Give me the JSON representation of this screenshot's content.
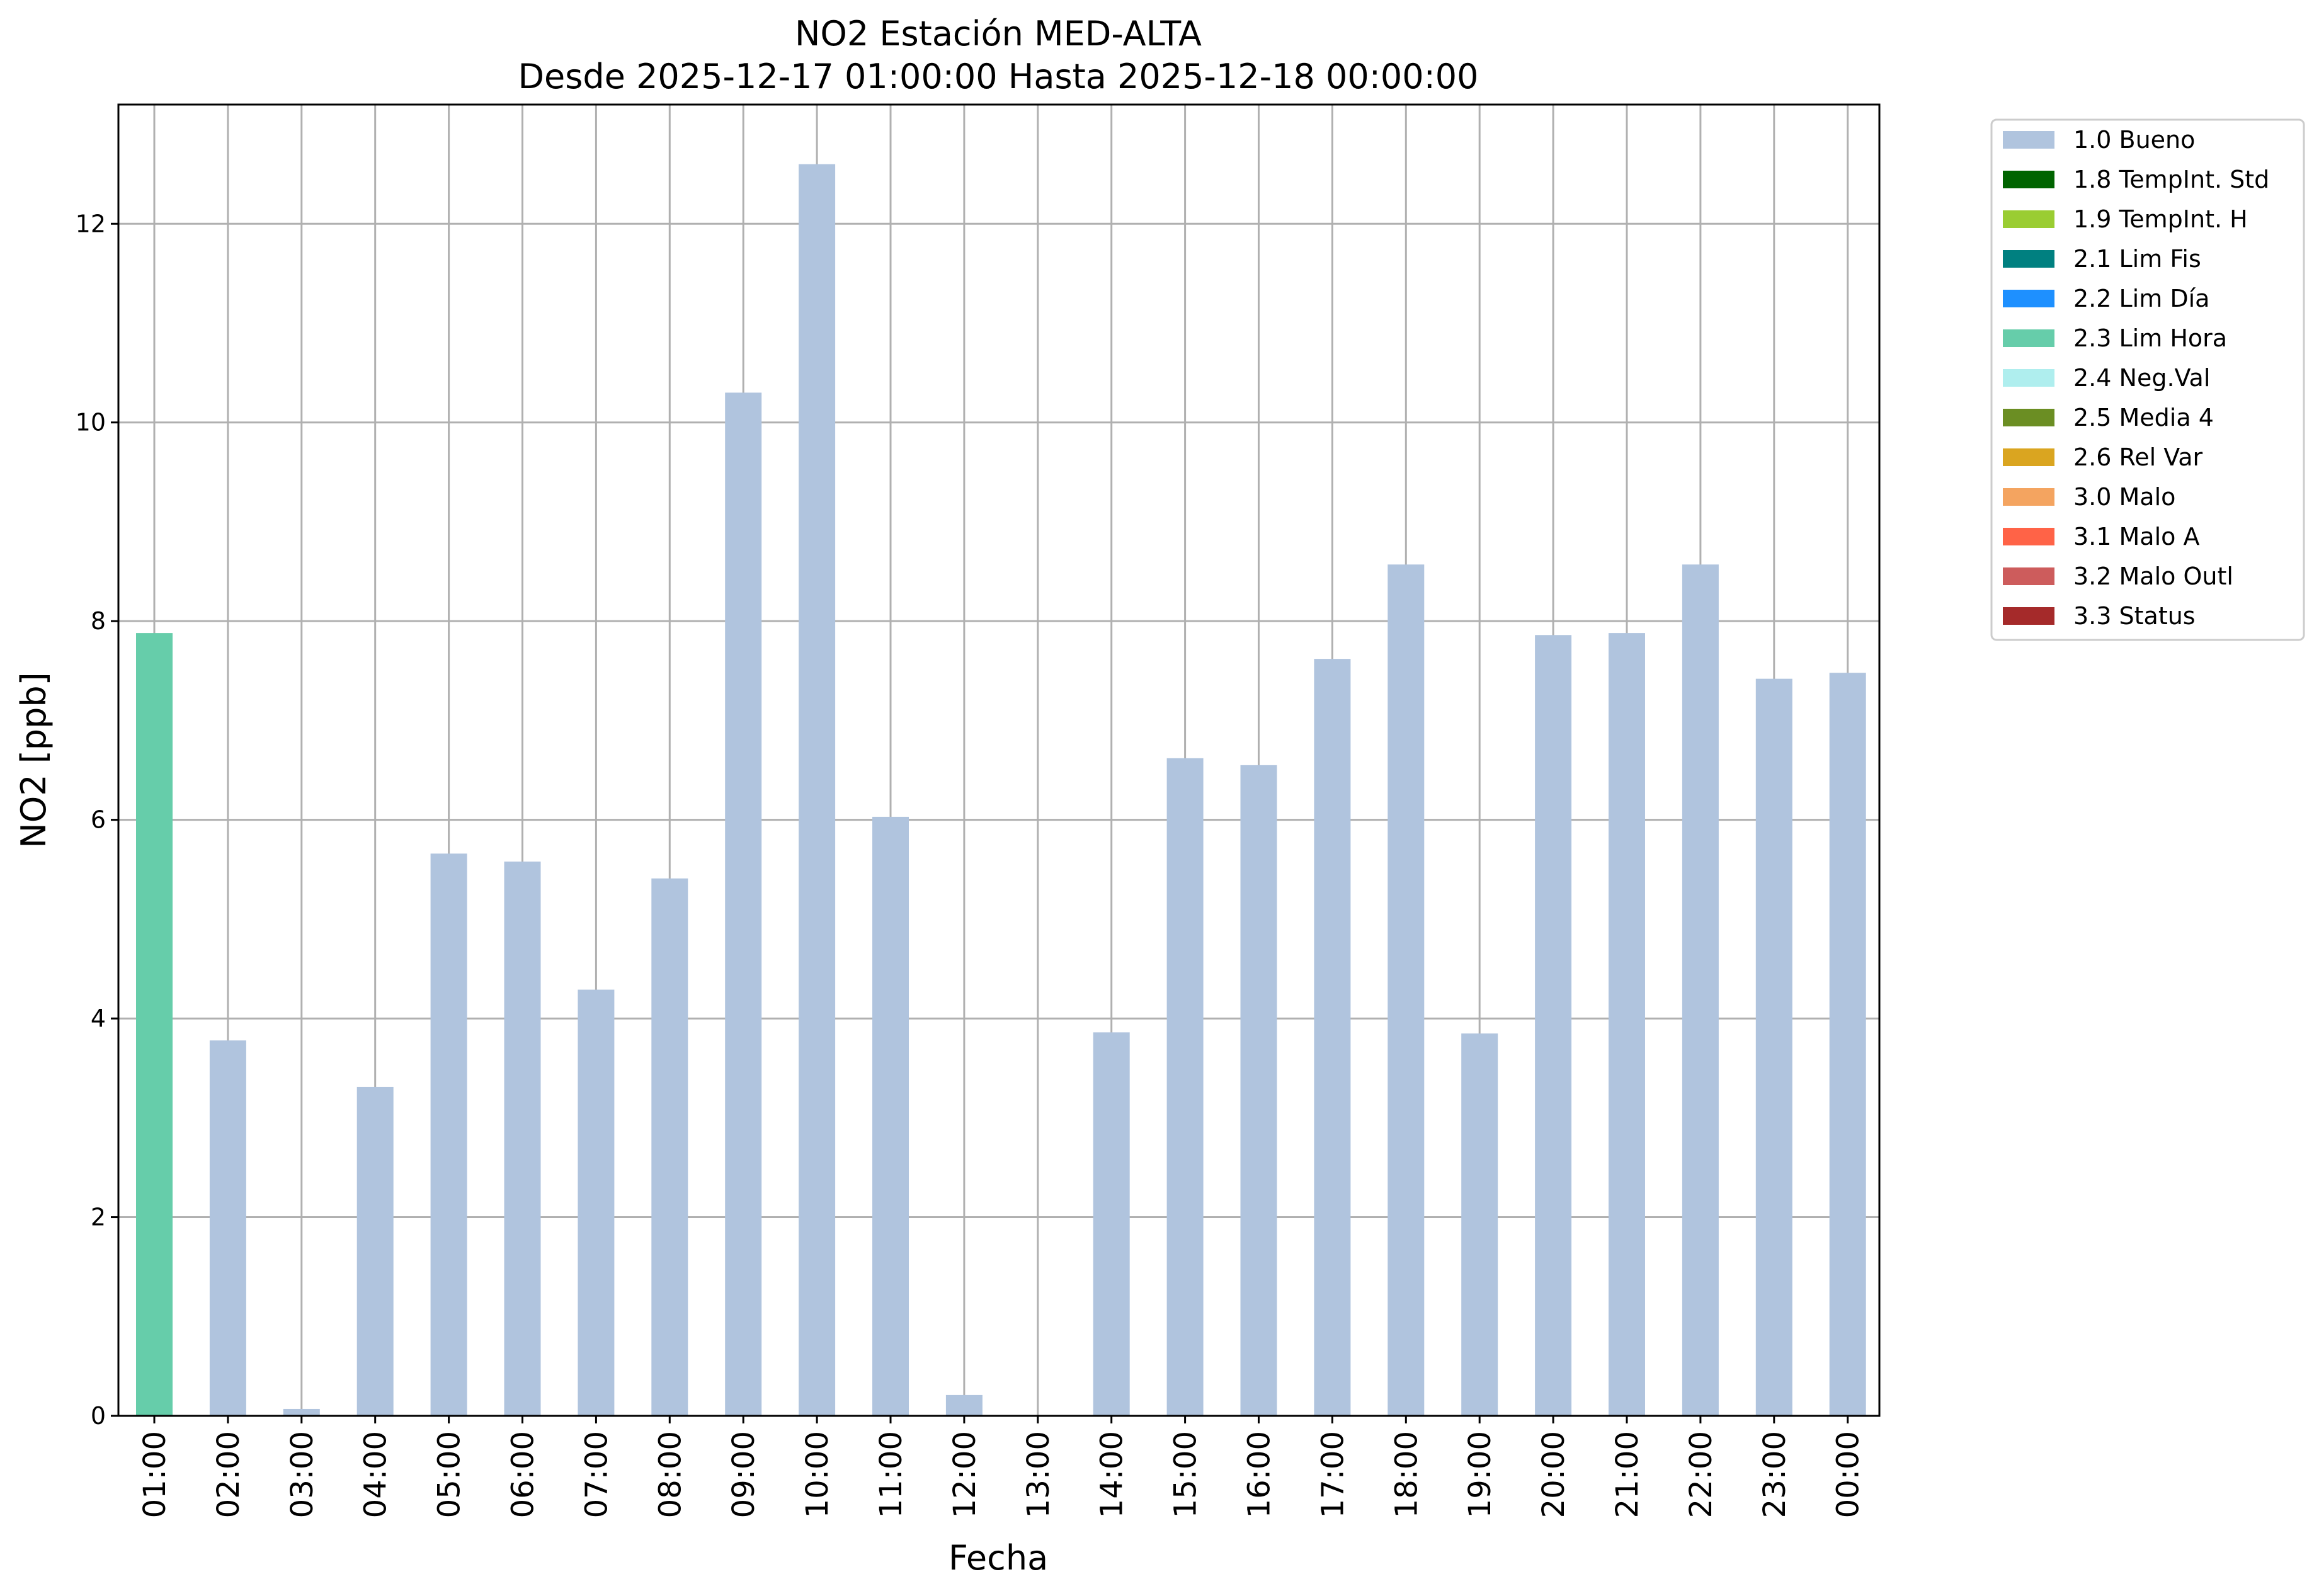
{
  "chart_data": {
    "type": "bar",
    "title": "NO2 Estación MED-ALTA",
    "subtitle": "Desde 2025-12-17 01:00:00 Hasta 2025-12-18 00:00:00",
    "xlabel": "Fecha",
    "ylabel": "NO2 [ppb]",
    "ylim": [
      0,
      13.2
    ],
    "yticks": [
      "0",
      "2",
      "4",
      "6",
      "8",
      "10",
      "12"
    ],
    "grid": true,
    "legend_position": "outside-top-right",
    "categories": [
      "01:00",
      "02:00",
      "03:00",
      "04:00",
      "05:00",
      "06:00",
      "07:00",
      "08:00",
      "09:00",
      "10:00",
      "11:00",
      "12:00",
      "13:00",
      "14:00",
      "15:00",
      "16:00",
      "17:00",
      "18:00",
      "19:00",
      "20:00",
      "21:00",
      "22:00",
      "23:00",
      "00:00"
    ],
    "values": [
      7.88,
      3.78,
      0.07,
      3.31,
      5.66,
      5.58,
      4.29,
      5.41,
      10.3,
      12.6,
      6.03,
      0.21,
      0.0,
      3.86,
      6.62,
      6.55,
      7.62,
      8.57,
      3.85,
      7.86,
      7.88,
      8.57,
      7.42,
      7.48
    ],
    "bar_flags": [
      "2.3 Lim Hora",
      "1.0 Bueno",
      "1.0 Bueno",
      "1.0 Bueno",
      "1.0 Bueno",
      "1.0 Bueno",
      "1.0 Bueno",
      "1.0 Bueno",
      "1.0 Bueno",
      "1.0 Bueno",
      "1.0 Bueno",
      "1.0 Bueno",
      "1.0 Bueno",
      "1.0 Bueno",
      "1.0 Bueno",
      "1.0 Bueno",
      "1.0 Bueno",
      "1.0 Bueno",
      "1.0 Bueno",
      "1.0 Bueno",
      "1.0 Bueno",
      "1.0 Bueno",
      "1.0 Bueno",
      "1.0 Bueno"
    ],
    "legend": [
      {
        "label": "1.0 Bueno",
        "color": "#b0c4de"
      },
      {
        "label": "1.8 TempInt. Std",
        "color": "#006400"
      },
      {
        "label": "1.9 TempInt. H",
        "color": "#9acd32"
      },
      {
        "label": "2.1 Lim Fis",
        "color": "#008080"
      },
      {
        "label": "2.2 Lim Día",
        "color": "#1e90ff"
      },
      {
        "label": "2.3 Lim Hora",
        "color": "#66cdaa"
      },
      {
        "label": "2.4 Neg.Val",
        "color": "#afeeee"
      },
      {
        "label": "2.5 Media 4",
        "color": "#6b8e23"
      },
      {
        "label": "2.6 Rel Var",
        "color": "#daa520"
      },
      {
        "label": "3.0 Malo",
        "color": "#f4a460"
      },
      {
        "label": "3.1 Malo A",
        "color": "#ff6347"
      },
      {
        "label": "3.2 Malo Outl",
        "color": "#cd5c5c"
      },
      {
        "label": "3.3 Status",
        "color": "#a52a2a"
      }
    ]
  }
}
